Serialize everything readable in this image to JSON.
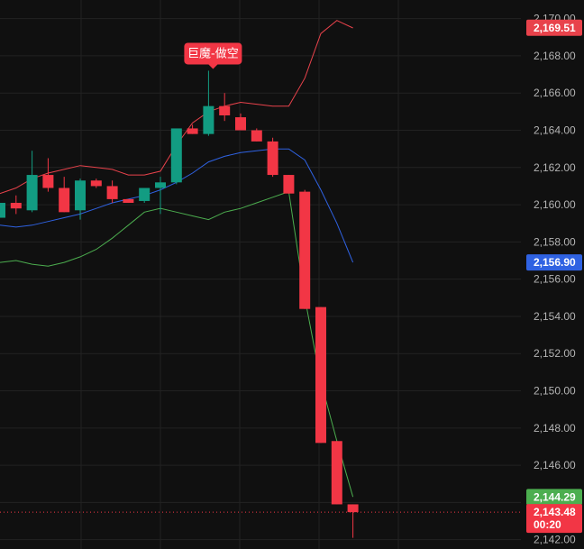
{
  "chart_data": {
    "type": "candlestick",
    "y_axis": {
      "min": 2141.5,
      "max": 2171.0,
      "ticks": [
        "2,142.00",
        "2,144.00",
        "2,146.00",
        "2,148.00",
        "2,150.00",
        "2,152.00",
        "2,154.00",
        "2,156.00",
        "2,158.00",
        "2,160.00",
        "2,162.00",
        "2,164.00",
        "2,166.00",
        "2,168.00",
        "2,170.00"
      ],
      "tick_values": [
        2142,
        2144,
        2146,
        2148,
        2150,
        2152,
        2154,
        2156,
        2158,
        2160,
        2162,
        2164,
        2166,
        2168,
        2170
      ],
      "grid": true
    },
    "colors": {
      "background": "#101010",
      "up": "#129c82",
      "down": "#f23645",
      "grid": "#222222",
      "upper_band": "#e8424b",
      "middle_band": "#2f62e2",
      "lower_band": "#4cae4f",
      "axis_text": "#b4b4b4"
    },
    "candles": [
      {
        "open": 2159.3,
        "high": 2160.0,
        "low": 2159.3,
        "close": 2160.1
      },
      {
        "open": 2160.1,
        "high": 2160.5,
        "low": 2159.5,
        "close": 2159.8
      },
      {
        "open": 2159.7,
        "high": 2162.9,
        "low": 2159.6,
        "close": 2161.6
      },
      {
        "open": 2161.6,
        "high": 2162.5,
        "low": 2160.7,
        "close": 2160.9
      },
      {
        "open": 2160.9,
        "high": 2161.5,
        "low": 2159.6,
        "close": 2159.6
      },
      {
        "open": 2159.7,
        "high": 2161.4,
        "low": 2159.2,
        "close": 2161.3
      },
      {
        "open": 2161.3,
        "high": 2161.4,
        "low": 2160.9,
        "close": 2161.0
      },
      {
        "open": 2161.0,
        "high": 2161.3,
        "low": 2160.1,
        "close": 2160.3
      },
      {
        "open": 2160.3,
        "high": 2160.3,
        "low": 2160.1,
        "close": 2160.1
      },
      {
        "open": 2160.2,
        "high": 2160.8,
        "low": 2160.1,
        "close": 2160.9
      },
      {
        "open": 2160.9,
        "high": 2161.5,
        "low": 2159.5,
        "close": 2161.2
      },
      {
        "open": 2161.2,
        "high": 2164.0,
        "low": 2161.1,
        "close": 2164.1
      },
      {
        "open": 2164.1,
        "high": 2164.3,
        "low": 2163.8,
        "close": 2163.8
      },
      {
        "open": 2163.8,
        "high": 2167.2,
        "low": 2163.7,
        "close": 2165.3
      },
      {
        "open": 2165.3,
        "high": 2166.0,
        "low": 2164.5,
        "close": 2164.8
      },
      {
        "open": 2164.7,
        "high": 2164.9,
        "low": 2164.0,
        "close": 2164.0
      },
      {
        "open": 2164.0,
        "high": 2164.1,
        "low": 2163.4,
        "close": 2163.4
      },
      {
        "open": 2163.4,
        "high": 2163.6,
        "low": 2161.5,
        "close": 2161.6
      },
      {
        "open": 2161.6,
        "high": 2161.6,
        "low": 2160.6,
        "close": 2160.6
      },
      {
        "open": 2160.7,
        "high": 2160.8,
        "low": 2154.4,
        "close": 2154.4
      },
      {
        "open": 2154.5,
        "high": 2154.5,
        "low": 2147.2,
        "close": 2147.2
      },
      {
        "open": 2147.3,
        "high": 2147.3,
        "low": 2143.9,
        "close": 2143.9
      },
      {
        "open": 2143.9,
        "high": 2143.9,
        "low": 2142.1,
        "close": 2143.48
      }
    ],
    "upper_band": [
      2160.6,
      2160.9,
      2161.4,
      2161.7,
      2161.9,
      2162.1,
      2162.0,
      2161.9,
      2161.6,
      2161.6,
      2161.8,
      2163.2,
      2164.4,
      2165.0,
      2165.3,
      2165.5,
      2165.4,
      2165.3,
      2165.3,
      2166.8,
      2169.2,
      2169.9,
      2169.5
    ],
    "middle_band": [
      2158.9,
      2158.8,
      2158.9,
      2159.1,
      2159.3,
      2159.5,
      2159.8,
      2160.1,
      2160.3,
      2160.5,
      2160.8,
      2161.2,
      2161.7,
      2162.3,
      2162.6,
      2162.8,
      2162.9,
      2163.0,
      2163.0,
      2162.4,
      2160.8,
      2159.0,
      2156.9
    ],
    "lower_band": [
      2156.9,
      2157.0,
      2156.8,
      2156.7,
      2156.9,
      2157.2,
      2157.6,
      2158.2,
      2158.9,
      2159.6,
      2159.8,
      2159.6,
      2159.4,
      2159.2,
      2159.6,
      2159.8,
      2160.1,
      2160.4,
      2160.7,
      2155.0,
      2150.5,
      2147.3,
      2144.3
    ],
    "price_tags": [
      {
        "label": "2,169.51",
        "value": 2169.51,
        "color": "#e8424b"
      },
      {
        "label": "2,156.90",
        "value": 2156.9,
        "color": "#2f62e2"
      },
      {
        "label": "2,144.29",
        "value": 2144.29,
        "color": "#4cae4f"
      }
    ],
    "last_price": {
      "label": "2,143.48",
      "countdown": "00:20",
      "value": 2143.48,
      "color": "#f23645"
    },
    "annotation": {
      "text": "巨魔-做空",
      "candle_index": 13,
      "color": "#f23645"
    }
  }
}
